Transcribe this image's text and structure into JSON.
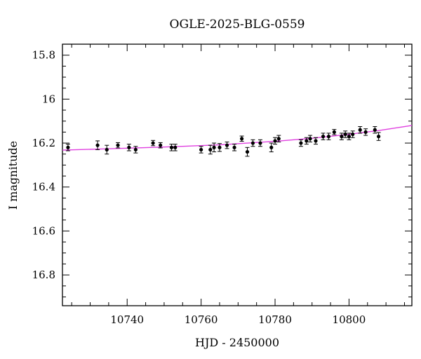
{
  "chart_data": {
    "type": "scatter",
    "title": "OGLE-2025-BLG-0559",
    "xlabel": "HJD - 2450000",
    "ylabel": "I magnitude",
    "xlim": [
      10722.5,
      10817
    ],
    "ylim": [
      16.94,
      15.75
    ],
    "y_inverted": true,
    "grid": false,
    "x_ticks": [
      10740,
      10760,
      10780,
      10800
    ],
    "x_tick_labels": [
      "10740",
      "10760",
      "10780",
      "10800"
    ],
    "y_ticks": [
      15.8,
      16,
      16.2,
      16.4,
      16.6,
      16.8
    ],
    "y_tick_labels": [
      "15.8",
      "16",
      "16.2",
      "16.4",
      "16.6",
      "16.8"
    ],
    "marker_color": "#000000",
    "model_color": "#e040e0",
    "series": [
      {
        "kind": "points",
        "x": [
          10724,
          10732,
          10734.5,
          10737.5,
          10740.5,
          10742.3,
          10747,
          10749,
          10752,
          10753,
          10760,
          10762.5,
          10763.5,
          10765,
          10767,
          10769,
          10771,
          10772.5,
          10774,
          10776,
          10779,
          10780,
          10781,
          10787,
          10788.5,
          10789.5,
          10791,
          10793,
          10794.5,
          10796,
          10798,
          10799,
          10800,
          10801,
          10803,
          10804.5,
          10807,
          10808
        ],
        "y": [
          16.22,
          16.21,
          16.23,
          16.21,
          16.22,
          16.23,
          16.2,
          16.21,
          16.22,
          16.22,
          16.23,
          16.23,
          16.22,
          16.22,
          16.21,
          16.22,
          16.18,
          16.24,
          16.2,
          16.2,
          16.22,
          16.19,
          16.18,
          16.2,
          16.19,
          16.18,
          16.19,
          16.17,
          16.17,
          16.15,
          16.17,
          16.16,
          16.17,
          16.16,
          16.14,
          16.15,
          16.14,
          16.17
        ],
        "yerr": [
          0.015,
          0.02,
          0.02,
          0.012,
          0.015,
          0.015,
          0.012,
          0.012,
          0.015,
          0.015,
          0.015,
          0.02,
          0.02,
          0.018,
          0.015,
          0.015,
          0.012,
          0.02,
          0.015,
          0.015,
          0.02,
          0.015,
          0.015,
          0.015,
          0.015,
          0.015,
          0.015,
          0.015,
          0.015,
          0.012,
          0.015,
          0.015,
          0.015,
          0.015,
          0.015,
          0.015,
          0.015,
          0.018
        ]
      },
      {
        "kind": "model",
        "x": [
          10722.5,
          10735,
          10750,
          10765,
          10780,
          10790,
          10800,
          10808,
          10817
        ],
        "y": [
          16.232,
          16.226,
          16.218,
          16.208,
          16.192,
          16.178,
          16.16,
          16.143,
          16.12
        ]
      }
    ]
  }
}
